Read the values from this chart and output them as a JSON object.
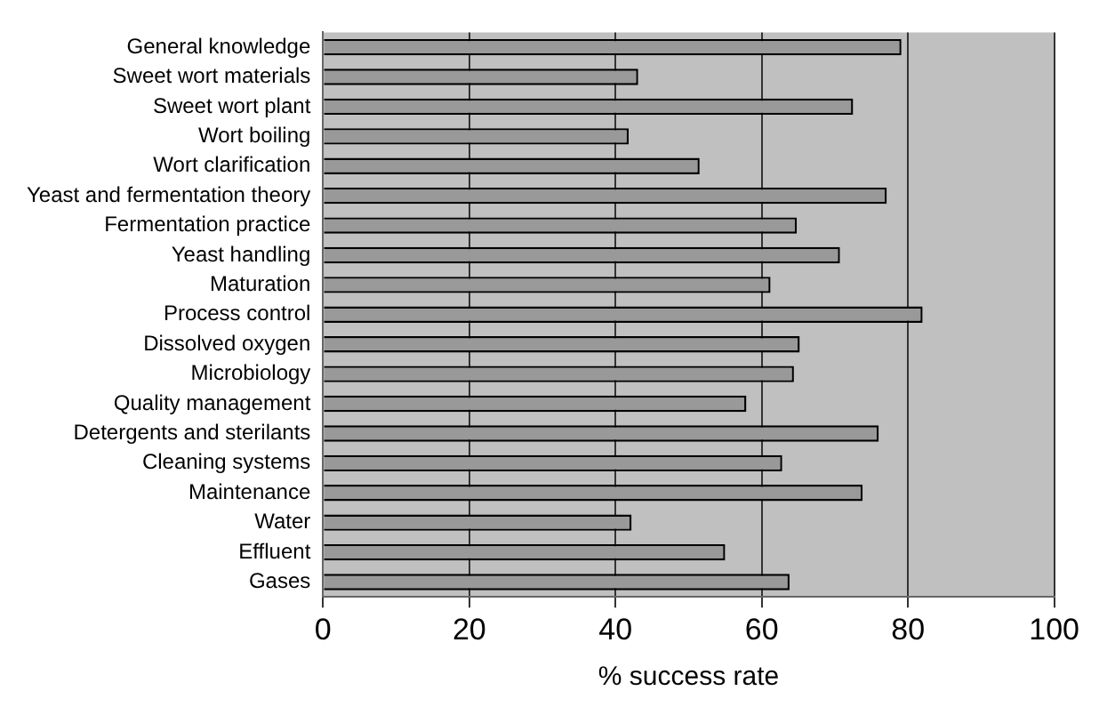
{
  "chart_data": {
    "type": "bar",
    "orientation": "horizontal",
    "xlabel": "% success rate",
    "categories": [
      "General knowledge",
      "Sweet wort materials",
      "Sweet wort plant",
      "Wort boiling",
      "Wort clarification",
      "Yeast and fermentation theory",
      "Fermentation practice",
      "Yeast handling",
      "Maturation",
      "Process control",
      "Dissolved oxygen",
      "Microbiology",
      "Quality management",
      "Detergents and sterilants",
      "Cleaning systems",
      "Maintenance",
      "Water",
      "Effluent",
      "Gases"
    ],
    "values": [
      79.1,
      43.1,
      72.5,
      41.8,
      51.5,
      77.1,
      64.8,
      70.7,
      61.2,
      82.0,
      65.2,
      64.4,
      57.9,
      76.0,
      62.8,
      73.8,
      42.2,
      55.0,
      63.8
    ],
    "color": "#999999",
    "xlim": [
      0,
      100
    ],
    "xticks": [
      0,
      20,
      40,
      60,
      80,
      100
    ],
    "grid": "x",
    "legend": false
  }
}
